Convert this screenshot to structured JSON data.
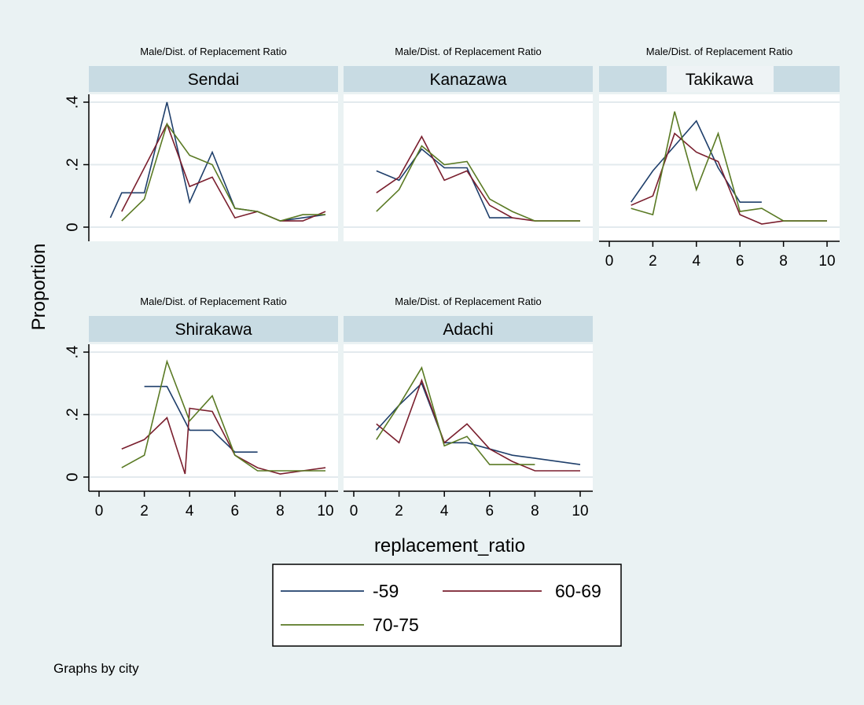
{
  "chart_data": {
    "type": "line",
    "ylabel": "Proportion",
    "xlabel": "replacement_ratio",
    "note": "Graphs by city",
    "xlim": [
      0,
      10
    ],
    "ylim": [
      0,
      0.4
    ],
    "xticks": [
      0,
      2,
      4,
      6,
      8,
      10
    ],
    "xtick_labels": [
      "0",
      "2",
      "4",
      "6",
      "8",
      "10"
    ],
    "yticks": [
      0,
      0.2,
      0.4
    ],
    "ytick_labels": [
      "0",
      ".2",
      ".4"
    ],
    "grid": true,
    "legend_position": "bottom",
    "legend": [
      {
        "name": "-59",
        "color": "#1f3f6b"
      },
      {
        "name": "60-69",
        "color": "#7a1f2e"
      },
      {
        "name": "70-75",
        "color": "#5a7a24"
      }
    ],
    "panels": [
      {
        "subtitle": "Male/Dist. of Replacement Ratio",
        "title": "Sendai",
        "series": [
          {
            "name": "-59",
            "x": [
              0.5,
              1,
              2,
              3,
              4,
              5,
              6,
              7,
              8,
              9,
              10
            ],
            "y": [
              0.03,
              0.11,
              0.11,
              0.4,
              0.08,
              0.24,
              0.06,
              0.05,
              0.02,
              0.03,
              0.04
            ]
          },
          {
            "name": "60-69",
            "x": [
              1,
              2,
              3,
              4,
              5,
              6,
              7,
              8,
              9,
              10
            ],
            "y": [
              0.05,
              0.19,
              0.33,
              0.13,
              0.16,
              0.03,
              0.05,
              0.02,
              0.02,
              0.05
            ]
          },
          {
            "name": "70-75",
            "x": [
              1,
              2,
              3,
              4,
              5,
              6,
              7,
              8,
              9,
              10
            ],
            "y": [
              0.02,
              0.09,
              0.33,
              0.23,
              0.2,
              0.06,
              0.05,
              0.02,
              0.04,
              0.04
            ]
          }
        ]
      },
      {
        "subtitle": "Male/Dist. of Replacement Ratio",
        "title": "Kanazawa",
        "series": [
          {
            "name": "-59",
            "x": [
              1,
              2,
              3,
              4,
              5,
              6,
              7
            ],
            "y": [
              0.18,
              0.15,
              0.25,
              0.19,
              0.19,
              0.03,
              0.03
            ]
          },
          {
            "name": "60-69",
            "x": [
              1,
              2,
              3,
              4,
              5,
              6,
              7,
              8,
              9,
              10
            ],
            "y": [
              0.11,
              0.16,
              0.29,
              0.15,
              0.18,
              0.07,
              0.03,
              0.02,
              0.02,
              0.02
            ]
          },
          {
            "name": "70-75",
            "x": [
              1,
              2,
              3,
              4,
              5,
              6,
              7,
              8,
              9,
              10
            ],
            "y": [
              0.05,
              0.12,
              0.26,
              0.2,
              0.21,
              0.09,
              0.05,
              0.02,
              0.02,
              0.02
            ]
          }
        ]
      },
      {
        "subtitle": "Male/Dist. of Replacement Ratio",
        "title": "Takikawa",
        "series": [
          {
            "name": "-59",
            "x": [
              1,
              2,
              3,
              4,
              5,
              6,
              7
            ],
            "y": [
              0.08,
              0.18,
              0.26,
              0.34,
              0.19,
              0.08,
              0.08
            ]
          },
          {
            "name": "60-69",
            "x": [
              1,
              2,
              3,
              4,
              5,
              6,
              7,
              8,
              9,
              10
            ],
            "y": [
              0.07,
              0.1,
              0.3,
              0.24,
              0.21,
              0.04,
              0.01,
              0.02,
              0.02,
              0.02
            ]
          },
          {
            "name": "70-75",
            "x": [
              1,
              2,
              3,
              4,
              5,
              6,
              7,
              8,
              9,
              10
            ],
            "y": [
              0.06,
              0.04,
              0.37,
              0.12,
              0.3,
              0.05,
              0.06,
              0.02,
              0.02,
              0.02
            ]
          }
        ]
      },
      {
        "subtitle": "Male/Dist. of Replacement Ratio",
        "title": "Shirakawa",
        "series": [
          {
            "name": "-59",
            "x": [
              2,
              3,
              4,
              5,
              6,
              7
            ],
            "y": [
              0.29,
              0.29,
              0.15,
              0.15,
              0.08,
              0.08
            ]
          },
          {
            "name": "60-69",
            "x": [
              1,
              2,
              3,
              3.8,
              4,
              5,
              6,
              7,
              8,
              9,
              10
            ],
            "y": [
              0.09,
              0.12,
              0.19,
              0.01,
              0.22,
              0.21,
              0.07,
              0.03,
              0.01,
              0.02,
              0.03
            ]
          },
          {
            "name": "70-75",
            "x": [
              1,
              2,
              3,
              4,
              5,
              6,
              7,
              8,
              9,
              10
            ],
            "y": [
              0.03,
              0.07,
              0.37,
              0.18,
              0.26,
              0.07,
              0.02,
              0.02,
              0.02,
              0.02
            ]
          }
        ]
      },
      {
        "subtitle": "Male/Dist. of Replacement Ratio",
        "title": "Adachi",
        "series": [
          {
            "name": "-59",
            "x": [
              1,
              2,
              3,
              4,
              5,
              6,
              7,
              8,
              9,
              10
            ],
            "y": [
              0.15,
              0.23,
              0.3,
              0.11,
              0.11,
              0.09,
              0.07,
              0.06,
              0.05,
              0.04
            ]
          },
          {
            "name": "60-69",
            "x": [
              1,
              2,
              3,
              4,
              5,
              6,
              7,
              8,
              9,
              10
            ],
            "y": [
              0.17,
              0.11,
              0.31,
              0.11,
              0.17,
              0.09,
              0.05,
              0.02,
              0.02,
              0.02
            ]
          },
          {
            "name": "70-75",
            "x": [
              1,
              2,
              3,
              4,
              5,
              6,
              7,
              8
            ],
            "y": [
              0.12,
              0.23,
              0.35,
              0.1,
              0.13,
              0.04,
              0.04,
              0.04
            ]
          }
        ]
      }
    ]
  }
}
